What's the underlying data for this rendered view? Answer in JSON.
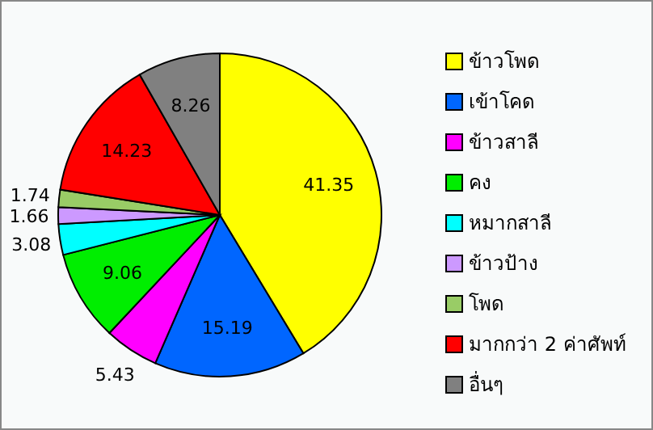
{
  "chart_data": {
    "type": "pie",
    "categories": [
      "ข้าวโพด",
      "เข้าโคด",
      "ข้าวสาลี",
      "คง",
      "หมากสาลี",
      "ข้าวป้าง",
      "โพด",
      "มากกว่า 2 ค่าศัพท์",
      "อื่นๆ"
    ],
    "values": [
      41.35,
      15.19,
      5.43,
      9.06,
      3.08,
      1.66,
      1.74,
      14.23,
      8.26
    ],
    "colors": [
      "#ffff00",
      "#0066ff",
      "#ff00ff",
      "#00ee00",
      "#00ffff",
      "#cc99ff",
      "#99cc66",
      "#ff0000",
      "#808080"
    ],
    "data_labels": true,
    "legend": "right"
  }
}
